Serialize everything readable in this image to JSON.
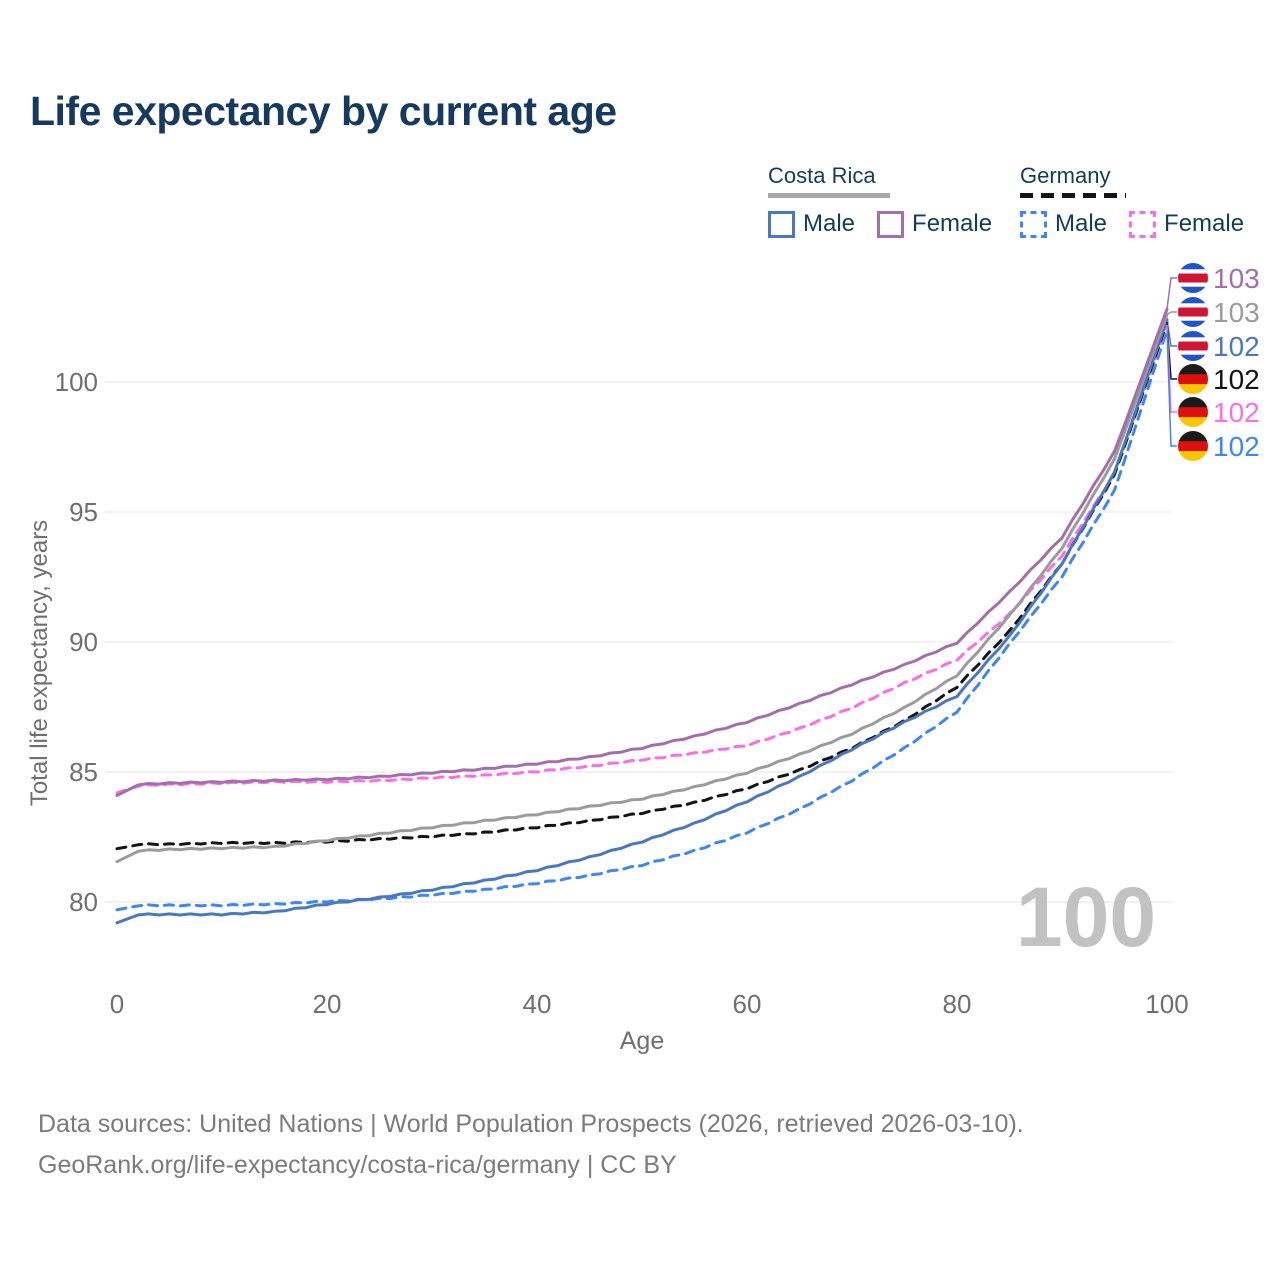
{
  "title": "Life expectancy by current age",
  "legend": {
    "groups": [
      {
        "label": "Costa Rica",
        "line_style": "solid",
        "underline_color": "#a9a9a9",
        "items": [
          {
            "label": "Male",
            "color": "#4a78bd",
            "dash": false
          },
          {
            "label": "Female",
            "color": "#a26fa8",
            "dash": false
          }
        ]
      },
      {
        "label": "Germany",
        "line_style": "dashed",
        "underline_color": "#141414",
        "items": [
          {
            "label": "Male",
            "color": "#3e87f0",
            "dash": true
          },
          {
            "label": "Female",
            "color": "#fb6ee4",
            "dash": true
          }
        ]
      }
    ]
  },
  "chart_data": {
    "type": "line",
    "title": "Life expectancy by current age",
    "xlabel": "Age",
    "ylabel": "Total life expectancy, years",
    "x_ticks": [
      0,
      20,
      40,
      60,
      80,
      100
    ],
    "y_ticks": [
      80,
      85,
      90,
      95,
      100
    ],
    "xlim": [
      0,
      100
    ],
    "ylim": [
      78.5,
      104.5
    ],
    "grid": true,
    "legend_position": "top-right",
    "watermark": "100",
    "x": [
      0,
      2,
      5,
      10,
      15,
      20,
      25,
      30,
      35,
      40,
      45,
      50,
      55,
      60,
      65,
      70,
      75,
      80,
      85,
      90,
      95,
      100
    ],
    "series": [
      {
        "name": "Costa Rica Female",
        "country": "Costa Rica",
        "flag_icon": "costa-rica-flag-icon",
        "color": "#a26fa8",
        "dash": false,
        "end_label": "103",
        "values": [
          84.1,
          84.5,
          84.55,
          84.6,
          84.65,
          84.7,
          84.8,
          84.95,
          85.1,
          85.3,
          85.55,
          85.9,
          86.35,
          86.9,
          87.6,
          88.35,
          89.1,
          89.95,
          91.9,
          94.0,
          97.3,
          102.8
        ]
      },
      {
        "name": "Costa Rica (both sexes)",
        "country": "Costa Rica",
        "flag_icon": "costa-rica-flag-icon",
        "color": "#9b9b9b",
        "dash": false,
        "end_label": "103",
        "values": [
          81.55,
          81.95,
          82.0,
          82.05,
          82.1,
          82.35,
          82.6,
          82.85,
          83.1,
          83.35,
          83.65,
          83.95,
          84.4,
          84.95,
          85.65,
          86.45,
          87.45,
          88.7,
          91.0,
          93.6,
          97.0,
          102.6
        ]
      },
      {
        "name": "Costa Rica Male",
        "country": "Costa Rica",
        "flag_icon": "costa-rica-flag-icon",
        "color": "#4a78bd",
        "dash": false,
        "end_label": "102",
        "values": [
          79.2,
          79.5,
          79.5,
          79.5,
          79.6,
          79.9,
          80.15,
          80.45,
          80.8,
          81.2,
          81.7,
          82.3,
          83.0,
          83.85,
          84.8,
          85.85,
          86.9,
          87.9,
          90.2,
          93.0,
          96.5,
          102.4
        ]
      },
      {
        "name": "Germany (both sexes)",
        "country": "Germany",
        "flag_icon": "germany-flag-icon",
        "color": "#141414",
        "dash": true,
        "end_label": "102",
        "values": [
          82.05,
          82.2,
          82.2,
          82.25,
          82.25,
          82.3,
          82.4,
          82.5,
          82.65,
          82.85,
          83.1,
          83.4,
          83.8,
          84.35,
          85.05,
          85.9,
          86.95,
          88.25,
          90.4,
          93.0,
          96.4,
          102.3
        ]
      },
      {
        "name": "Germany Female",
        "country": "Germany",
        "flag_icon": "germany-flag-icon",
        "color": "#fb6ee4",
        "dash": true,
        "end_label": "102",
        "values": [
          84.2,
          84.45,
          84.5,
          84.55,
          84.6,
          84.6,
          84.65,
          84.75,
          84.85,
          85.0,
          85.2,
          85.45,
          85.7,
          86.0,
          86.65,
          87.45,
          88.4,
          89.3,
          91.05,
          93.3,
          96.45,
          102.2
        ]
      },
      {
        "name": "Germany Male",
        "country": "Germany",
        "flag_icon": "germany-flag-icon",
        "color": "#3e87f0",
        "dash": true,
        "end_label": "102",
        "values": [
          79.7,
          79.85,
          79.85,
          79.85,
          79.9,
          80.0,
          80.1,
          80.25,
          80.45,
          80.7,
          81.0,
          81.4,
          81.95,
          82.65,
          83.55,
          84.65,
          85.9,
          87.3,
          89.9,
          92.5,
          95.8,
          102.0
        ]
      }
    ],
    "flag_colors": {
      "costa_rica": {
        "blue": "#1f55c4",
        "white": "#ffffff",
        "red": "#d11433"
      },
      "germany": {
        "black": "#1a1a1a",
        "red": "#dd0f0f",
        "gold": "#f7c600"
      }
    }
  },
  "footer": {
    "line1": "Data sources: United Nations | World Population Prospects (2026, retrieved 2026-03-10).",
    "line2": "GeoRank.org/life-expectancy/costa-rica/germany | CC BY"
  }
}
